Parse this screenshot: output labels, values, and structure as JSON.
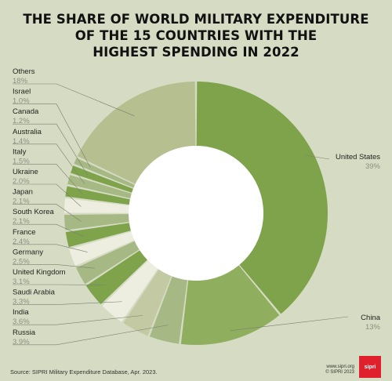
{
  "title_lines": [
    "THE SHARE OF WORLD MILITARY EXPENDITURE",
    "OF THE 15 COUNTRIES WITH THE",
    "HIGHEST SPENDING IN 2022"
  ],
  "footer": {
    "source": "Source: SIPRI Military Expenditure Database, Apr. 2023.",
    "credit_url": "www.sipri.org",
    "credit_copy": "© SIPRI 2023",
    "logo_text": "sipri"
  },
  "colors": {
    "background": "#d6dcc3",
    "primary_green": "#7ea34b",
    "mid_green": "#a6b884",
    "pale_green": "#c3c9a3",
    "cream": "#edeee0"
  },
  "chart_data": {
    "type": "pie",
    "subtype": "donut",
    "title": "THE SHARE OF WORLD MILITARY EXPENDITURE OF THE 15 COUNTRIES WITH THE HIGHEST SPENDING IN 2022",
    "slices": [
      {
        "label": "United States",
        "value": 39,
        "display": "39%",
        "color": "#7ea34b"
      },
      {
        "label": "China",
        "value": 13,
        "display": "13%",
        "color": "#8fae5e"
      },
      {
        "label": "Russia",
        "value": 3.9,
        "display": "3.9%",
        "color": "#a6b884"
      },
      {
        "label": "India",
        "value": 3.6,
        "display": "3.6%",
        "color": "#c3c9a3"
      },
      {
        "label": "Saudi Arabia",
        "value": 3.3,
        "display": "3.3%",
        "color": "#edeee0"
      },
      {
        "label": "United Kingdom",
        "value": 3.1,
        "display": "3.1%",
        "color": "#7ea34b"
      },
      {
        "label": "Germany",
        "value": 2.5,
        "display": "2.5%",
        "color": "#a6b884"
      },
      {
        "label": "France",
        "value": 2.4,
        "display": "2.4%",
        "color": "#edeee0"
      },
      {
        "label": "South Korea",
        "value": 2.1,
        "display": "2.1%",
        "color": "#7ea34b"
      },
      {
        "label": "Japan",
        "value": 2.1,
        "display": "2.1%",
        "color": "#a6b884"
      },
      {
        "label": "Ukraine",
        "value": 2.0,
        "display": "2.0%",
        "color": "#edeee0"
      },
      {
        "label": "Italy",
        "value": 1.5,
        "display": "1.5%",
        "color": "#7ea34b"
      },
      {
        "label": "Australia",
        "value": 1.4,
        "display": "1.4%",
        "color": "#a6b884"
      },
      {
        "label": "Canada",
        "value": 1.2,
        "display": "1.2%",
        "color": "#7ea34b"
      },
      {
        "label": "Israel",
        "value": 1.0,
        "display": "1.0%",
        "color": "#a6b884"
      },
      {
        "label": "Others",
        "value": 18,
        "display": "18%",
        "color": "#b5bf90"
      }
    ],
    "legend": "none"
  }
}
